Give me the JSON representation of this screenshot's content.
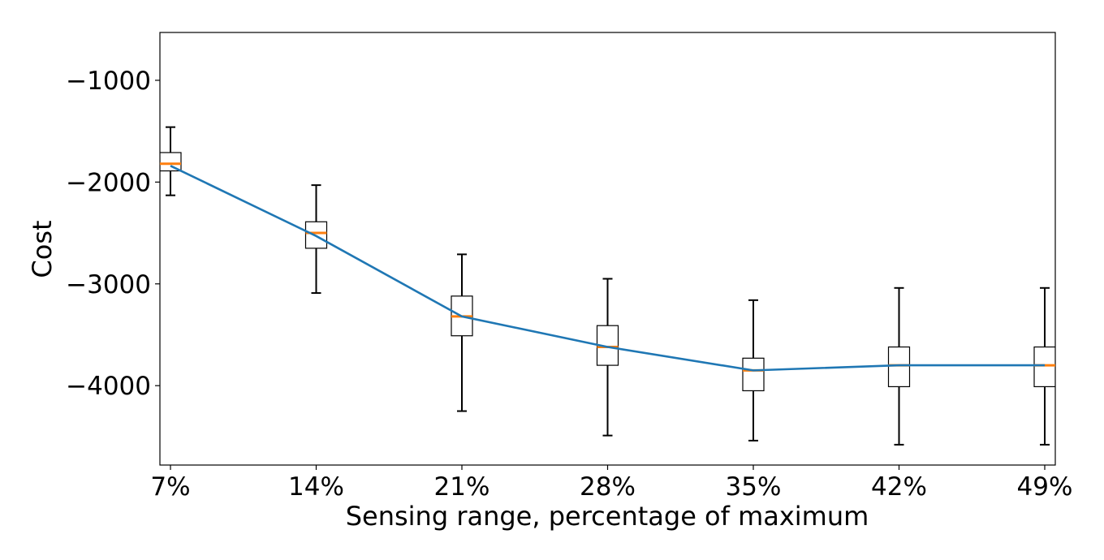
{
  "chart_data": {
    "type": "box",
    "title": "",
    "xlabel": "Sensing range, percentage of maximum",
    "ylabel": "Cost",
    "categories": [
      "7%",
      "14%",
      "21%",
      "28%",
      "35%",
      "42%",
      "49%"
    ],
    "ylim": [
      -4780,
      -530
    ],
    "yticks": [
      -1000,
      -2000,
      -3000,
      -4000
    ],
    "ytick_labels": [
      "−1000",
      "−2000",
      "−3000",
      "−4000"
    ],
    "grid": false,
    "boxes": [
      {
        "category": "7%",
        "whisker_low": -2130,
        "q1": -1890,
        "median": -1820,
        "q3": -1710,
        "whisker_high": -1460
      },
      {
        "category": "14%",
        "whisker_low": -3090,
        "q1": -2650,
        "median": -2500,
        "q3": -2390,
        "whisker_high": -2030
      },
      {
        "category": "21%",
        "whisker_low": -4250,
        "q1": -3510,
        "median": -3320,
        "q3": -3120,
        "whisker_high": -2710
      },
      {
        "category": "28%",
        "whisker_low": -4490,
        "q1": -3800,
        "median": -3620,
        "q3": -3410,
        "whisker_high": -2950
      },
      {
        "category": "35%",
        "whisker_low": -4540,
        "q1": -4050,
        "median": -3850,
        "q3": -3730,
        "whisker_high": -3160
      },
      {
        "category": "42%",
        "whisker_low": -4580,
        "q1": -4010,
        "median": -3800,
        "q3": -3620,
        "whisker_high": -3040
      },
      {
        "category": "49%",
        "whisker_low": -4580,
        "q1": -4010,
        "median": -3800,
        "q3": -3620,
        "whisker_high": -3040
      }
    ],
    "mean_line": [
      -1840,
      -2530,
      -3320,
      -3620,
      -3850,
      -3800,
      -3800
    ],
    "colors": {
      "box": "#000000",
      "median": "#ff7f0e",
      "line": "#1f77b4"
    }
  }
}
